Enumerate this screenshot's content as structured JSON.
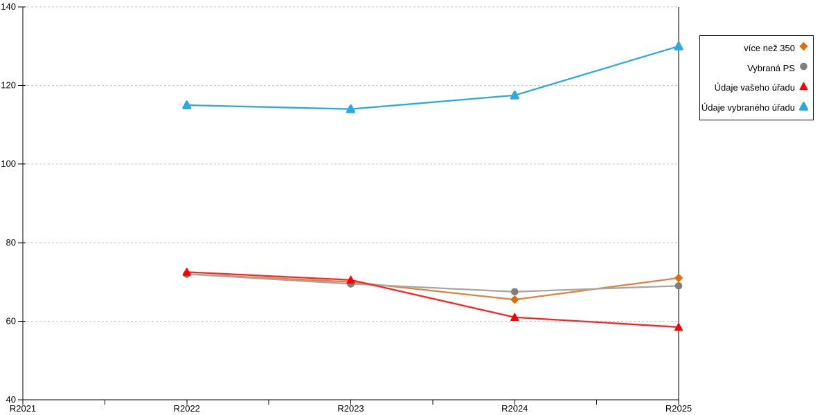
{
  "chart_data": {
    "type": "line",
    "title": "",
    "xlabel": "",
    "ylabel": "",
    "categories": [
      "R2021",
      "R2022",
      "R2023",
      "R2024",
      "R2025"
    ],
    "series": [
      {
        "name": "více než 350",
        "marker": "diamond",
        "marker_color": "#DE6C0C",
        "line_color": "#E8823B",
        "values": [
          null,
          72,
          70,
          65.5,
          71
        ]
      },
      {
        "name": "Vybraná PS",
        "marker": "circle",
        "marker_color": "#7F7F7F",
        "line_color": "#A6A6A6",
        "values": [
          null,
          72,
          69.5,
          67.5,
          69
        ]
      },
      {
        "name": "Údaje vašeho úřadu",
        "marker": "triangle",
        "marker_color": "#FF0000",
        "line_color": "#FF2222",
        "values": [
          null,
          72.5,
          70.5,
          61,
          58.5
        ]
      },
      {
        "name": "Údaje vybraného úřadu",
        "marker": "triangle-rounded",
        "marker_color": "#29ABE2",
        "line_color": "#29ABE2",
        "values": [
          null,
          115,
          114,
          117.5,
          130
        ]
      }
    ],
    "ylim": [
      40,
      140
    ],
    "yticks": [
      40,
      60,
      80,
      100,
      120,
      140
    ],
    "grid": "horizontal-dashed",
    "grid_color": "#C3C3C3",
    "axis_color": "#000000",
    "legend_position": "outside-right-top",
    "legend_marker_side": "right"
  }
}
